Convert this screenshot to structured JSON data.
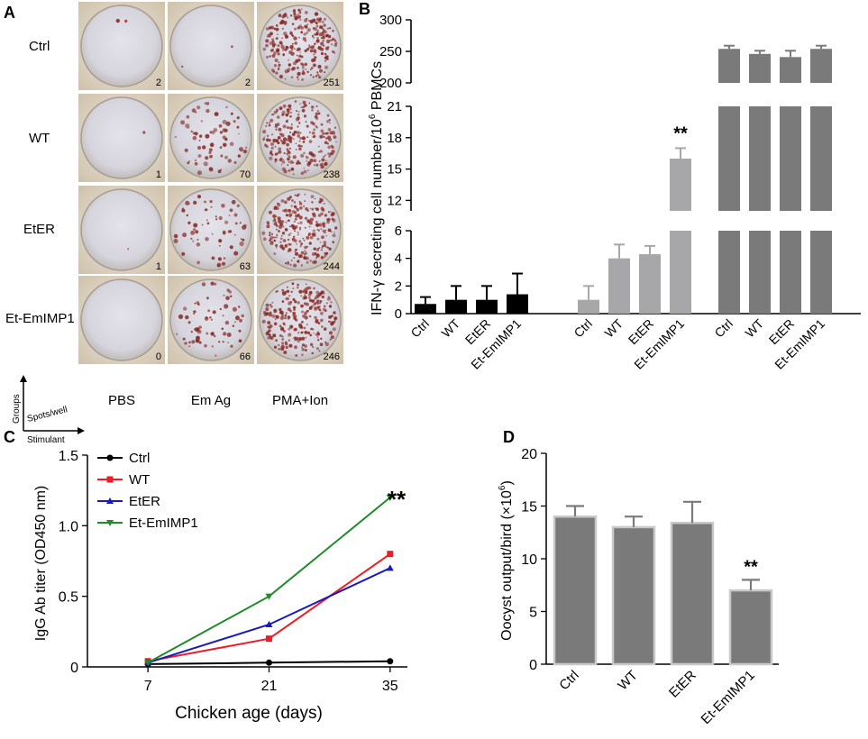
{
  "colors": {
    "black": "#000000",
    "light_gray": "#a7a7aa",
    "dark_gray": "#7a7a7a",
    "ctrl_line": "#000000",
    "wt_line": "#ee1c25",
    "eter_line": "#1a1ab8",
    "emimp_line": "#1f8b2a",
    "spot": "#8a2f2a"
  },
  "panel_a": {
    "label": "A",
    "row_labels": [
      "Ctrl",
      "WT",
      "EtER",
      "Et-EmIMP1"
    ],
    "col_labels": [
      "PBS",
      "Em Ag",
      "PMA+Ion"
    ],
    "spot_counts": [
      [
        2,
        2,
        251
      ],
      [
        1,
        70,
        238
      ],
      [
        1,
        63,
        244
      ],
      [
        0,
        66,
        246
      ]
    ],
    "axis_groups": "Groups",
    "axis_spots": "Spots/well",
    "axis_stimulant": "Stimulant"
  },
  "chart_data": [
    {
      "panel": "B",
      "type": "bar",
      "ylabel": "IFN-γ secreting cell number/10",
      "ylabel_sup": "6",
      "ylabel_tail": " PBMCs",
      "y_segments": [
        {
          "range": [
            0,
            6
          ],
          "ticks": [
            0,
            2,
            4,
            6
          ]
        },
        {
          "range": [
            11,
            21
          ],
          "ticks": [
            12,
            15,
            18,
            21
          ]
        },
        {
          "range": [
            200,
            300
          ],
          "ticks": [
            200,
            250,
            300
          ]
        }
      ],
      "groups": [
        {
          "name": "PBS",
          "color_key": "black",
          "categories": [
            "Ctrl",
            "WT",
            "EtER",
            "Et-EmIMP1"
          ],
          "values": [
            0.7,
            1.0,
            1.0,
            1.4
          ],
          "errors": [
            0.5,
            1.0,
            1.0,
            1.5
          ]
        },
        {
          "name": "Em Ag",
          "color_key": "light_gray",
          "categories": [
            "Ctrl",
            "WT",
            "EtER",
            "Et-EmIMP1"
          ],
          "values": [
            1.0,
            4.0,
            4.3,
            16.0
          ],
          "errors": [
            1.0,
            1.0,
            0.6,
            1.0
          ]
        },
        {
          "name": "PMA+Ion",
          "color_key": "dark_gray",
          "categories": [
            "Ctrl",
            "WT",
            "EtER",
            "Et-EmIMP1"
          ],
          "values": [
            254,
            246,
            241,
            254
          ],
          "errors": [
            5,
            5,
            10,
            5
          ]
        }
      ],
      "annotation": "**"
    },
    {
      "panel": "C",
      "type": "line",
      "xlabel": "Chicken age (days)",
      "ylabel": "IgG Ab titer (OD450 nm)",
      "x": [
        7,
        21,
        35
      ],
      "xlim": [
        0,
        37
      ],
      "ylim": [
        0,
        1.5
      ],
      "xticks": [
        7,
        21,
        35
      ],
      "yticks": [
        0,
        0.5,
        1.0,
        1.5
      ],
      "ytick_labels": [
        "0",
        "0.5",
        "1.0",
        "1.5"
      ],
      "series": [
        {
          "name": "Ctrl",
          "color_key": "ctrl_line",
          "marker": "circle",
          "values": [
            0.02,
            0.03,
            0.04
          ]
        },
        {
          "name": "WT",
          "color_key": "wt_line",
          "marker": "square",
          "values": [
            0.04,
            0.2,
            0.8
          ]
        },
        {
          "name": "EtER",
          "color_key": "eter_line",
          "marker": "triangle-up",
          "values": [
            0.03,
            0.3,
            0.7
          ]
        },
        {
          "name": "Et-EmIMP1",
          "color_key": "emimp_line",
          "marker": "triangle-down",
          "values": [
            0.03,
            0.5,
            1.2
          ]
        }
      ],
      "annotation": "**",
      "legend": "top-left"
    },
    {
      "panel": "D",
      "type": "bar",
      "ylabel": "Oocyst output/bird (×10",
      "ylabel_sup": "6",
      "ylabel_tail": ")",
      "categories": [
        "Ctrl",
        "WT",
        "EtER",
        "Et-EmIMP1"
      ],
      "values": [
        14.0,
        13.0,
        13.4,
        7.0
      ],
      "errors": [
        1.0,
        1.0,
        2.0,
        1.0
      ],
      "ylim": [
        0,
        20
      ],
      "yticks": [
        0,
        5,
        10,
        15,
        20
      ],
      "color_key": "dark_gray",
      "annotation": "**"
    }
  ]
}
